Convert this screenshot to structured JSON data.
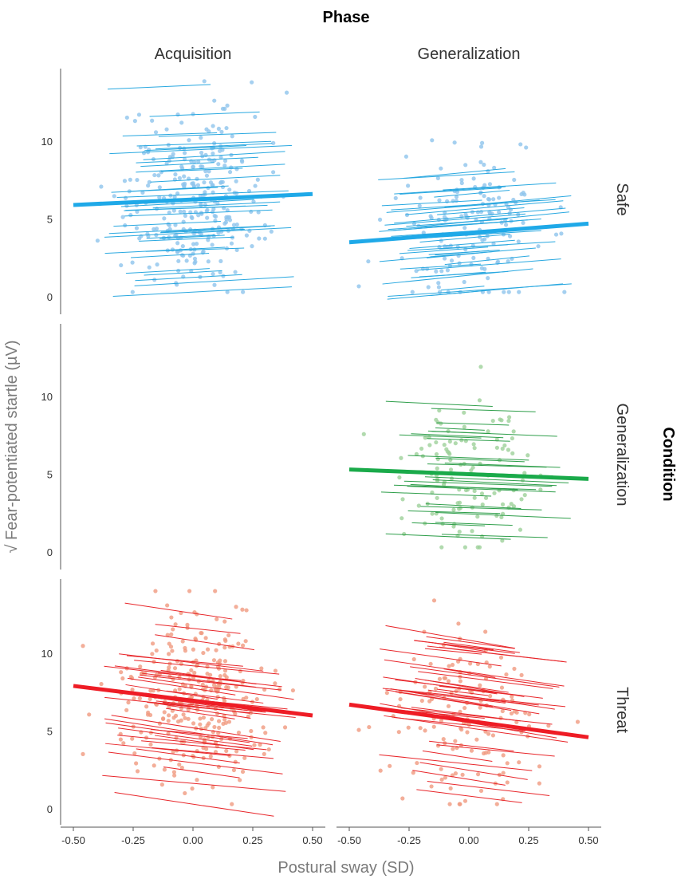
{
  "chart_data": {
    "type": "scatter",
    "title": "Phase",
    "condition_label": "Condition",
    "xlabel": "Postural sway (SD)",
    "ylabel": "√ Fear-potentiated startle (µV)",
    "xlim": [
      -0.5,
      0.5
    ],
    "ylim": [
      0,
      14
    ],
    "x_ticks": [
      -0.5,
      -0.25,
      0,
      0.25,
      0.5
    ],
    "x_tick_labels": [
      "-0.50",
      "-0.25",
      "0.00",
      "0.25",
      "0.50"
    ],
    "y_ticks": [
      0,
      5,
      10
    ],
    "y_tick_labels": [
      "0",
      "5",
      "10"
    ],
    "columns": [
      "Acquisition",
      "Generalization"
    ],
    "rows": [
      "Safe",
      "Generalization",
      "Threat"
    ],
    "colors": {
      "Safe": {
        "point": "#8fc4ec",
        "thin": "#29a8e0",
        "thick": "#1fa9e8"
      },
      "Generalization": {
        "point": "#9dd19a",
        "thin": "#2e9e4a",
        "thick": "#1aaa4a"
      },
      "Threat": {
        "point": "#f09a80",
        "thin": "#e8262a",
        "thick": "#ee1c25"
      }
    },
    "panels": [
      {
        "row": "Safe",
        "column": "Acquisition",
        "empty": false,
        "n_points": 290,
        "x_spread": 0.145,
        "center_y": 6.2,
        "sd_y": 2.8,
        "subject_lines": 40,
        "fit": {
          "x": [
            -0.5,
            0.5
          ],
          "y": [
            5.9,
            6.6
          ]
        }
      },
      {
        "row": "Safe",
        "column": "Generalization",
        "empty": false,
        "n_points": 150,
        "x_spread": 0.16,
        "center_y": 4.5,
        "sd_y": 2.5,
        "subject_lines": 42,
        "fit": {
          "x": [
            -0.5,
            0.5
          ],
          "y": [
            3.5,
            4.7
          ]
        }
      },
      {
        "row": "Generalization",
        "column": "Acquisition",
        "empty": true
      },
      {
        "row": "Generalization",
        "column": "Generalization",
        "empty": false,
        "n_points": 120,
        "x_spread": 0.15,
        "center_y": 5.3,
        "sd_y": 2.6,
        "subject_lines": 30,
        "fit": {
          "x": [
            -0.5,
            0.5
          ],
          "y": [
            5.3,
            4.7
          ]
        }
      },
      {
        "row": "Threat",
        "column": "Acquisition",
        "empty": false,
        "n_points": 300,
        "x_spread": 0.16,
        "center_y": 7.0,
        "sd_y": 2.8,
        "subject_lines": 42,
        "fit": {
          "x": [
            -0.5,
            0.5
          ],
          "y": [
            7.9,
            6.0
          ]
        }
      },
      {
        "row": "Threat",
        "column": "Generalization",
        "empty": false,
        "n_points": 140,
        "x_spread": 0.16,
        "center_y": 5.8,
        "sd_y": 2.8,
        "subject_lines": 42,
        "fit": {
          "x": [
            -0.5,
            0.5
          ],
          "y": [
            6.7,
            4.6
          ]
        }
      }
    ]
  }
}
